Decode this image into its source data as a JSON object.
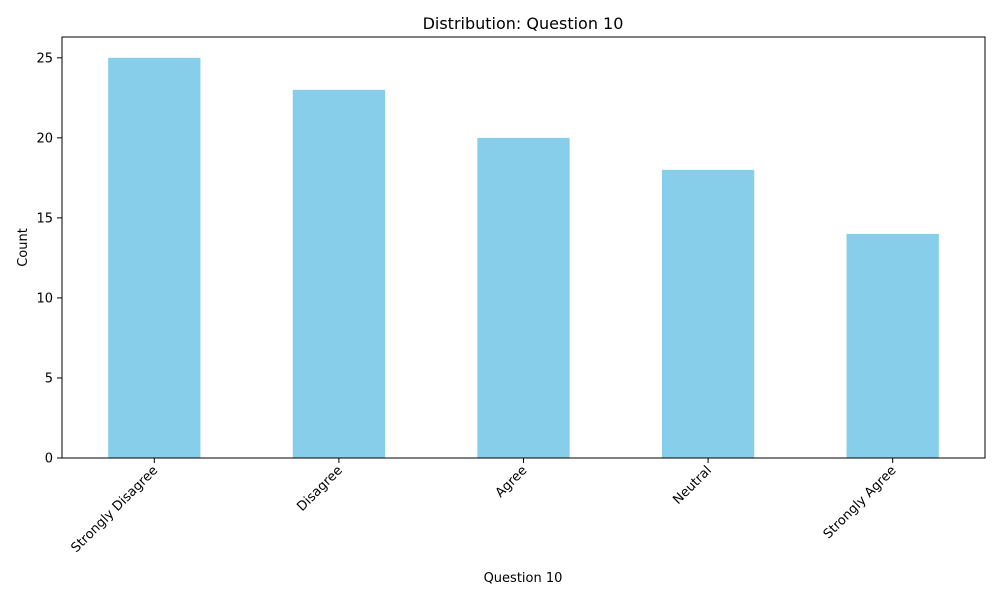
{
  "chart_data": {
    "type": "bar",
    "title": "Distribution: Question 10",
    "xlabel": "Question 10",
    "ylabel": "Count",
    "categories": [
      "Strongly Disagree",
      "Disagree",
      "Agree",
      "Neutral",
      "Strongly Agree"
    ],
    "values": [
      25,
      23,
      20,
      18,
      14
    ],
    "ylim": [
      0,
      26.3
    ],
    "yticks": [
      0,
      5,
      10,
      15,
      20,
      25
    ],
    "bar_color": "#87CEEB",
    "grid": false,
    "legend": "none"
  }
}
